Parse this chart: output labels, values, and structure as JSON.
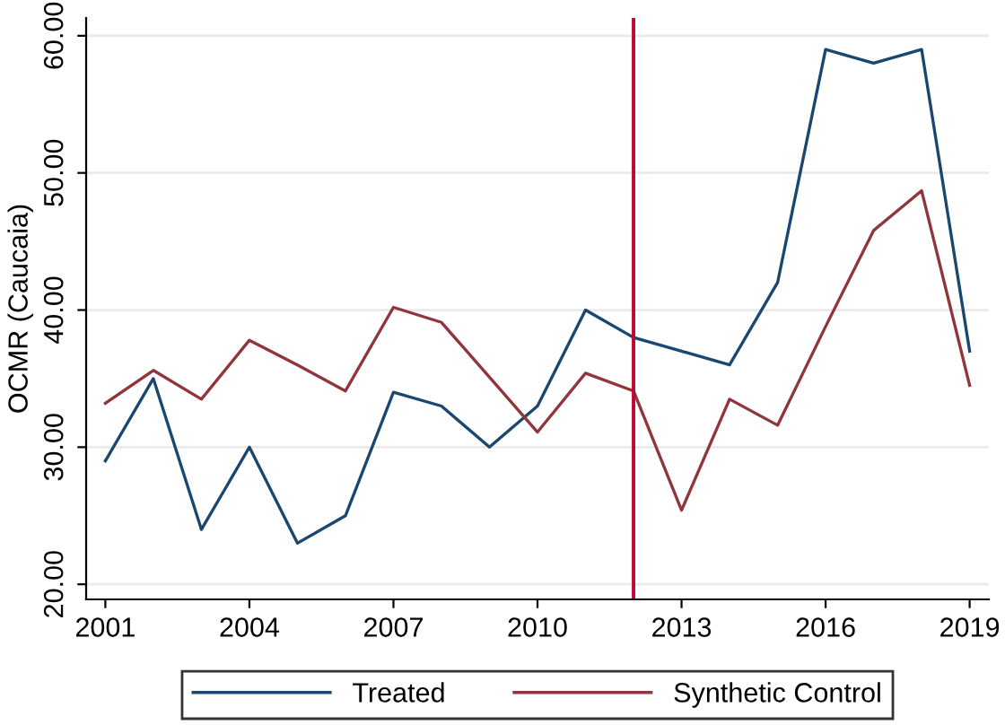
{
  "chart_data": {
    "type": "line",
    "ylabel": "OCMR (Caucaia)",
    "x": [
      2001,
      2002,
      2003,
      2004,
      2005,
      2006,
      2007,
      2008,
      2009,
      2010,
      2011,
      2012,
      2013,
      2014,
      2015,
      2016,
      2017,
      2018,
      2019
    ],
    "series": [
      {
        "name": "Treated",
        "color": "#1a476f",
        "values": [
          29,
          35,
          24,
          30,
          23,
          25,
          34,
          33,
          30,
          33,
          40,
          38,
          37,
          36,
          42,
          59,
          58,
          59,
          37
        ]
      },
      {
        "name": "Synthetic Control",
        "color": "#90353b",
        "values": [
          33.2,
          35.6,
          33.5,
          37.8,
          36,
          34.1,
          40.2,
          39.1,
          35.1,
          31.1,
          35.4,
          34.1,
          25.4,
          33.5,
          31.6,
          38.8,
          45.8,
          48.7,
          34.5
        ]
      }
    ],
    "xlim": [
      2000.6,
      2019.4
    ],
    "ylim": [
      18.9,
      61.3
    ],
    "xticks": [
      2001,
      2004,
      2007,
      2010,
      2013,
      2016,
      2019
    ],
    "yticks": [
      {
        "value": 20,
        "label": "20.00"
      },
      {
        "value": 30,
        "label": "30.00"
      },
      {
        "value": 40,
        "label": "40.00"
      },
      {
        "value": 50,
        "label": "50.00"
      },
      {
        "value": 60,
        "label": "60.00"
      }
    ],
    "ref_lines": [
      {
        "axis": "x",
        "value": 2012,
        "color": "#c10534"
      }
    ],
    "grid": "y",
    "legend": "bottom",
    "line_style": "solid",
    "marker": "none"
  }
}
